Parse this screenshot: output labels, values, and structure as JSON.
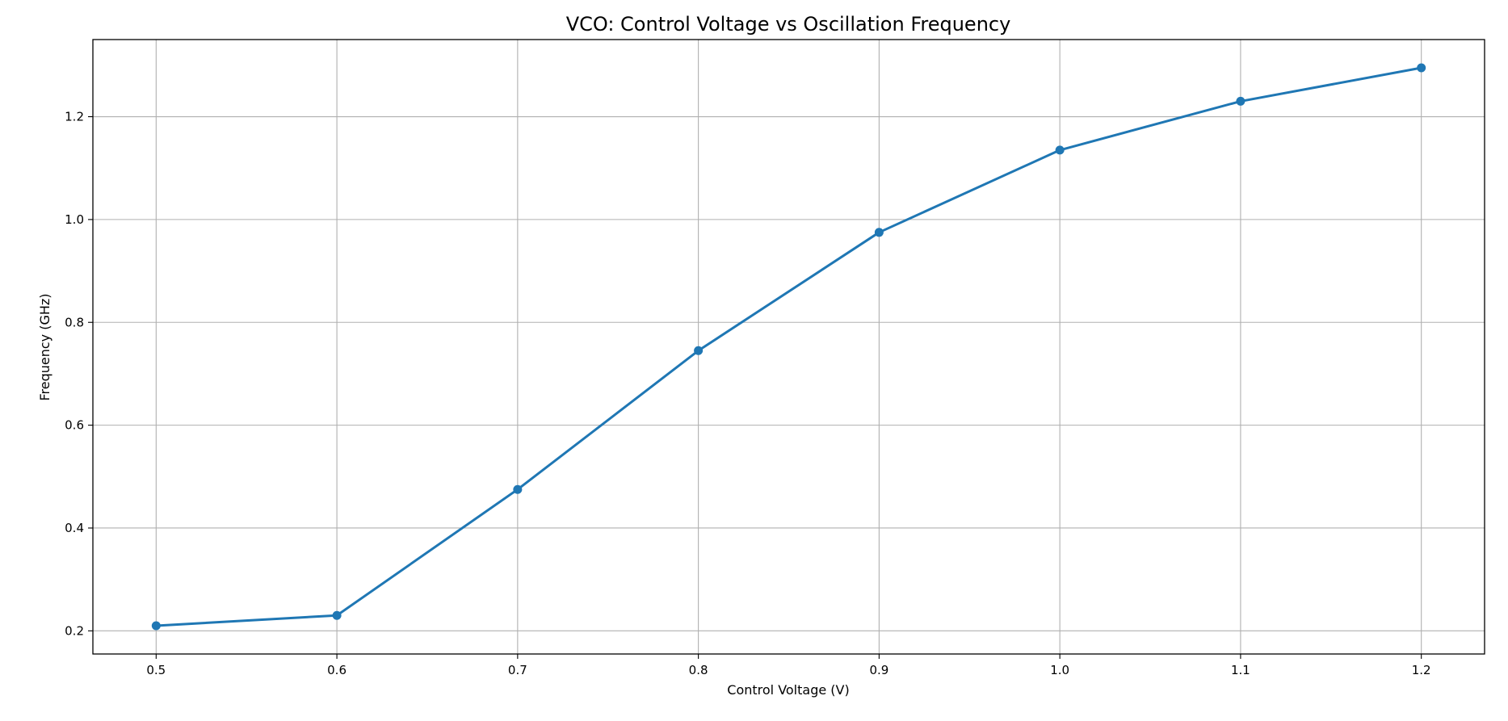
{
  "chart_data": {
    "type": "line",
    "title": "VCO: Control Voltage vs Oscillation Frequency",
    "xlabel": "Control Voltage (V)",
    "ylabel": "Frequency (GHz)",
    "xlim": [
      0.465,
      1.235
    ],
    "ylim": [
      0.155,
      1.35
    ],
    "x_ticks": [
      0.5,
      0.6,
      0.7,
      0.8,
      0.9,
      1.0,
      1.1,
      1.2
    ],
    "x_tick_labels": [
      "0.5",
      "0.6",
      "0.7",
      "0.8",
      "0.9",
      "1.0",
      "1.1",
      "1.2"
    ],
    "y_ticks": [
      0.2,
      0.4,
      0.6,
      0.8,
      1.0,
      1.2
    ],
    "y_tick_labels": [
      "0.2",
      "0.4",
      "0.6",
      "0.8",
      "1.0",
      "1.2"
    ],
    "grid": true,
    "series": [
      {
        "color": "#1f77b4",
        "marker": "circle",
        "x": [
          0.5,
          0.6,
          0.7,
          0.8,
          0.9,
          1.0,
          1.1,
          1.2
        ],
        "y": [
          0.21,
          0.23,
          0.475,
          0.745,
          0.975,
          1.135,
          1.23,
          1.295
        ]
      }
    ]
  }
}
